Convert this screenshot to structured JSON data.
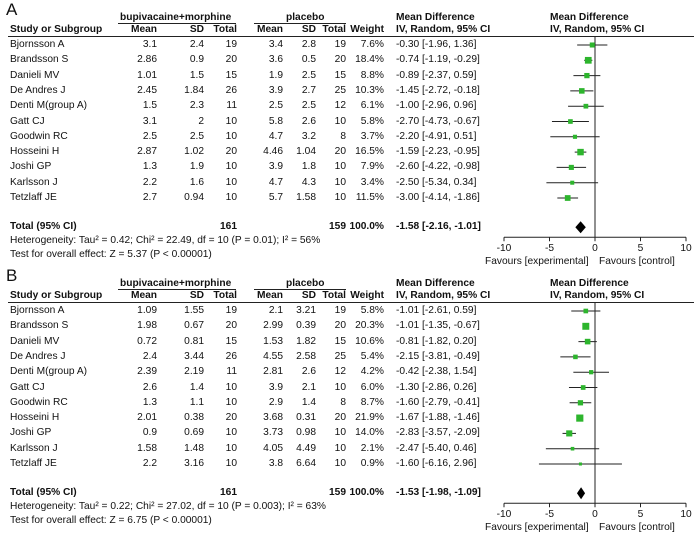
{
  "panels": [
    {
      "letter": "A",
      "header": {
        "group_exp": "bupivacaine+morphine",
        "group_ctrl": "placebo",
        "md_title": "Mean Difference",
        "md_sub": "IV, Random, 95% CI",
        "study": "Study or Subgroup",
        "mean": "Mean",
        "sd": "SD",
        "total": "Total",
        "weight": "Weight"
      },
      "rows": [
        {
          "study": "Bjornsson A",
          "m1": "3.1",
          "s1": "2.4",
          "n1": "19",
          "m2": "3.4",
          "s2": "2.8",
          "n2": "19",
          "w": "7.6%",
          "ci": "-0.30 [-1.96, 1.36]"
        },
        {
          "study": "Brandsson S",
          "m1": "2.86",
          "s1": "0.9",
          "n1": "20",
          "m2": "3.6",
          "s2": "0.5",
          "n2": "20",
          "w": "18.4%",
          "ci": "-0.74 [-1.19, -0.29]"
        },
        {
          "study": "Danieli MV",
          "m1": "1.01",
          "s1": "1.5",
          "n1": "15",
          "m2": "1.9",
          "s2": "2.5",
          "n2": "15",
          "w": "8.8%",
          "ci": "-0.89 [-2.37, 0.59]"
        },
        {
          "study": "De Andres J",
          "m1": "2.45",
          "s1": "1.84",
          "n1": "26",
          "m2": "3.9",
          "s2": "2.7",
          "n2": "25",
          "w": "10.3%",
          "ci": "-1.45 [-2.72, -0.18]"
        },
        {
          "study": "Denti M(group A)",
          "m1": "1.5",
          "s1": "2.3",
          "n1": "11",
          "m2": "2.5",
          "s2": "2.5",
          "n2": "12",
          "w": "6.1%",
          "ci": "-1.00 [-2.96, 0.96]"
        },
        {
          "study": "Gatt CJ",
          "m1": "3.1",
          "s1": "2",
          "n1": "10",
          "m2": "5.8",
          "s2": "2.6",
          "n2": "10",
          "w": "5.8%",
          "ci": "-2.70 [-4.73, -0.67]"
        },
        {
          "study": "Goodwin RC",
          "m1": "2.5",
          "s1": "2.5",
          "n1": "10",
          "m2": "4.7",
          "s2": "3.2",
          "n2": "8",
          "w": "3.7%",
          "ci": "-2.20 [-4.91, 0.51]"
        },
        {
          "study": "Hosseini H",
          "m1": "2.87",
          "s1": "1.02",
          "n1": "20",
          "m2": "4.46",
          "s2": "1.04",
          "n2": "20",
          "w": "16.5%",
          "ci": "-1.59 [-2.23, -0.95]"
        },
        {
          "study": "Joshi GP",
          "m1": "1.3",
          "s1": "1.9",
          "n1": "10",
          "m2": "3.9",
          "s2": "1.8",
          "n2": "10",
          "w": "7.9%",
          "ci": "-2.60 [-4.22, -0.98]"
        },
        {
          "study": "Karlsson J",
          "m1": "2.2",
          "s1": "1.6",
          "n1": "10",
          "m2": "4.7",
          "s2": "4.3",
          "n2": "10",
          "w": "3.4%",
          "ci": "-2.50 [-5.34, 0.34]"
        },
        {
          "study": "Tetzlaff JE",
          "m1": "2.7",
          "s1": "0.94",
          "n1": "10",
          "m2": "5.7",
          "s2": "1.58",
          "n2": "10",
          "w": "11.5%",
          "ci": "-3.00 [-4.14, -1.86]"
        }
      ],
      "total": {
        "label": "Total (95% CI)",
        "n1": "161",
        "n2": "159",
        "w": "100.0%",
        "ci": "-1.58 [-2.16, -1.01]"
      },
      "heterogeneity": "Heterogeneity: Tau² = 0.42; Chi² = 22.49, df = 10 (P = 0.01); I² = 56%",
      "overall": "Test for overall effect: Z = 5.37 (P < 0.00001)",
      "favours_left": "Favours [experimental]",
      "favours_right": "Favours [control]"
    },
    {
      "letter": "B",
      "header": {
        "group_exp": "bupivacaine+morphine",
        "group_ctrl": "placebo",
        "md_title": "Mean Difference",
        "md_sub": "IV, Random, 95% CI",
        "study": "Study or Subgroup",
        "mean": "Mean",
        "sd": "SD",
        "total": "Total",
        "weight": "Weight"
      },
      "rows": [
        {
          "study": "Bjornsson A",
          "m1": "1.09",
          "s1": "1.55",
          "n1": "19",
          "m2": "2.1",
          "s2": "3.21",
          "n2": "19",
          "w": "5.8%",
          "ci": "-1.01 [-2.61, 0.59]"
        },
        {
          "study": "Brandsson S",
          "m1": "1.98",
          "s1": "0.67",
          "n1": "20",
          "m2": "2.99",
          "s2": "0.39",
          "n2": "20",
          "w": "20.3%",
          "ci": "-1.01 [-1.35, -0.67]"
        },
        {
          "study": "Danieli MV",
          "m1": "0.72",
          "s1": "0.81",
          "n1": "15",
          "m2": "1.53",
          "s2": "1.82",
          "n2": "15",
          "w": "10.6%",
          "ci": "-0.81 [-1.82, 0.20]"
        },
        {
          "study": "De Andres J",
          "m1": "2.4",
          "s1": "3.44",
          "n1": "26",
          "m2": "4.55",
          "s2": "2.58",
          "n2": "25",
          "w": "5.4%",
          "ci": "-2.15 [-3.81, -0.49]"
        },
        {
          "study": "Denti M(group A)",
          "m1": "2.39",
          "s1": "2.19",
          "n1": "11",
          "m2": "2.81",
          "s2": "2.6",
          "n2": "12",
          "w": "4.2%",
          "ci": "-0.42 [-2.38, 1.54]"
        },
        {
          "study": "Gatt CJ",
          "m1": "2.6",
          "s1": "1.4",
          "n1": "10",
          "m2": "3.9",
          "s2": "2.1",
          "n2": "10",
          "w": "6.0%",
          "ci": "-1.30 [-2.86, 0.26]"
        },
        {
          "study": "Goodwin RC",
          "m1": "1.3",
          "s1": "1.1",
          "n1": "10",
          "m2": "2.9",
          "s2": "1.4",
          "n2": "8",
          "w": "8.7%",
          "ci": "-1.60 [-2.79, -0.41]"
        },
        {
          "study": "Hosseini H",
          "m1": "2.01",
          "s1": "0.38",
          "n1": "20",
          "m2": "3.68",
          "s2": "0.31",
          "n2": "20",
          "w": "21.9%",
          "ci": "-1.67 [-1.88, -1.46]"
        },
        {
          "study": "Joshi GP",
          "m1": "0.9",
          "s1": "0.69",
          "n1": "10",
          "m2": "3.73",
          "s2": "0.98",
          "n2": "10",
          "w": "14.0%",
          "ci": "-2.83 [-3.57, -2.09]"
        },
        {
          "study": "Karlsson J",
          "m1": "1.58",
          "s1": "1.48",
          "n1": "10",
          "m2": "4.05",
          "s2": "4.49",
          "n2": "10",
          "w": "2.1%",
          "ci": "-2.47 [-5.40, 0.46]"
        },
        {
          "study": "Tetzlaff JE",
          "m1": "2.2",
          "s1": "3.16",
          "n1": "10",
          "m2": "3.8",
          "s2": "6.64",
          "n2": "10",
          "w": "0.9%",
          "ci": "-1.60 [-6.16, 2.96]"
        }
      ],
      "total": {
        "label": "Total (95% CI)",
        "n1": "161",
        "n2": "159",
        "w": "100.0%",
        "ci": "-1.53 [-1.98, -1.09]"
      },
      "heterogeneity": "Heterogeneity: Tau² = 0.22; Chi² = 27.02, df = 10 (P = 0.003); I² = 63%",
      "overall": "Test for overall effect: Z = 6.75 (P < 0.00001)",
      "favours_left": "Favours [experimental]",
      "favours_right": "Favours [control]"
    }
  ],
  "chart_data": [
    {
      "type": "forest",
      "title": "A",
      "xlim": [
        -10,
        10
      ],
      "ticks": [
        "-10",
        "-5",
        "0",
        "5",
        "10"
      ],
      "tick_values": [
        -10,
        -5,
        0,
        5,
        10
      ],
      "series": [
        {
          "name": "Bjornsson A",
          "md": -0.3,
          "lo": -1.96,
          "hi": 1.36,
          "weight": 7.6
        },
        {
          "name": "Brandsson S",
          "md": -0.74,
          "lo": -1.19,
          "hi": -0.29,
          "weight": 18.4
        },
        {
          "name": "Danieli MV",
          "md": -0.89,
          "lo": -2.37,
          "hi": 0.59,
          "weight": 8.8
        },
        {
          "name": "De Andres J",
          "md": -1.45,
          "lo": -2.72,
          "hi": -0.18,
          "weight": 10.3
        },
        {
          "name": "Denti M(group A)",
          "md": -1.0,
          "lo": -2.96,
          "hi": 0.96,
          "weight": 6.1
        },
        {
          "name": "Gatt CJ",
          "md": -2.7,
          "lo": -4.73,
          "hi": -0.67,
          "weight": 5.8
        },
        {
          "name": "Goodwin RC",
          "md": -2.2,
          "lo": -4.91,
          "hi": 0.51,
          "weight": 3.7
        },
        {
          "name": "Hosseini H",
          "md": -1.59,
          "lo": -2.23,
          "hi": -0.95,
          "weight": 16.5
        },
        {
          "name": "Joshi GP",
          "md": -2.6,
          "lo": -4.22,
          "hi": -0.98,
          "weight": 7.9
        },
        {
          "name": "Karlsson J",
          "md": -2.5,
          "lo": -5.34,
          "hi": 0.34,
          "weight": 3.4
        },
        {
          "name": "Tetzlaff JE",
          "md": -3.0,
          "lo": -4.14,
          "hi": -1.86,
          "weight": 11.5
        }
      ],
      "pooled": {
        "md": -1.58,
        "lo": -2.16,
        "hi": -1.01
      }
    },
    {
      "type": "forest",
      "title": "B",
      "xlim": [
        -10,
        10
      ],
      "ticks": [
        "-10",
        "-5",
        "0",
        "5",
        "10"
      ],
      "tick_values": [
        -10,
        -5,
        0,
        5,
        10
      ],
      "series": [
        {
          "name": "Bjornsson A",
          "md": -1.01,
          "lo": -2.61,
          "hi": 0.59,
          "weight": 5.8
        },
        {
          "name": "Brandsson S",
          "md": -1.01,
          "lo": -1.35,
          "hi": -0.67,
          "weight": 20.3
        },
        {
          "name": "Danieli MV",
          "md": -0.81,
          "lo": -1.82,
          "hi": 0.2,
          "weight": 10.6
        },
        {
          "name": "De Andres J",
          "md": -2.15,
          "lo": -3.81,
          "hi": -0.49,
          "weight": 5.4
        },
        {
          "name": "Denti M(group A)",
          "md": -0.42,
          "lo": -2.38,
          "hi": 1.54,
          "weight": 4.2
        },
        {
          "name": "Gatt CJ",
          "md": -1.3,
          "lo": -2.86,
          "hi": 0.26,
          "weight": 6.0
        },
        {
          "name": "Goodwin RC",
          "md": -1.6,
          "lo": -2.79,
          "hi": -0.41,
          "weight": 8.7
        },
        {
          "name": "Hosseini H",
          "md": -1.67,
          "lo": -1.88,
          "hi": -1.46,
          "weight": 21.9
        },
        {
          "name": "Joshi GP",
          "md": -2.83,
          "lo": -3.57,
          "hi": -2.09,
          "weight": 14.0
        },
        {
          "name": "Karlsson J",
          "md": -2.47,
          "lo": -5.4,
          "hi": 0.46,
          "weight": 2.1
        },
        {
          "name": "Tetzlaff JE",
          "md": -1.6,
          "lo": -6.16,
          "hi": 2.96,
          "weight": 0.9
        }
      ],
      "pooled": {
        "md": -1.53,
        "lo": -1.98,
        "hi": -1.09
      }
    }
  ],
  "colors": {
    "marker": "#2db52d",
    "line": "#222222",
    "text": "#111111"
  }
}
